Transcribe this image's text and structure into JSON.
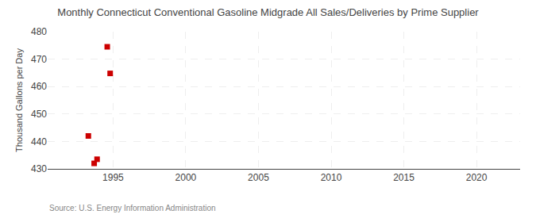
{
  "chart_data": {
    "type": "scatter",
    "title": "Monthly Connecticut Conventional Gasoline Midgrade All Sales/Deliveries by Prime Supplier",
    "ylabel": "Thousand Gallons per Day",
    "annotations": [
      "Source: U.S. Energy Information Administration"
    ],
    "x": [
      1993.3,
      1993.7,
      1993.9,
      1994.6,
      1994.8
    ],
    "values": [
      442.0,
      432.0,
      433.5,
      474.5,
      464.8
    ],
    "color": "#cc0000",
    "marker": "square",
    "xlim": [
      1990.5,
      2023
    ],
    "xticks": [
      1995,
      2000,
      2005,
      2010,
      2015,
      2020
    ],
    "ylim": [
      430,
      480
    ],
    "yticks": [
      430,
      440,
      450,
      460,
      470,
      480
    ],
    "grid": true
  }
}
